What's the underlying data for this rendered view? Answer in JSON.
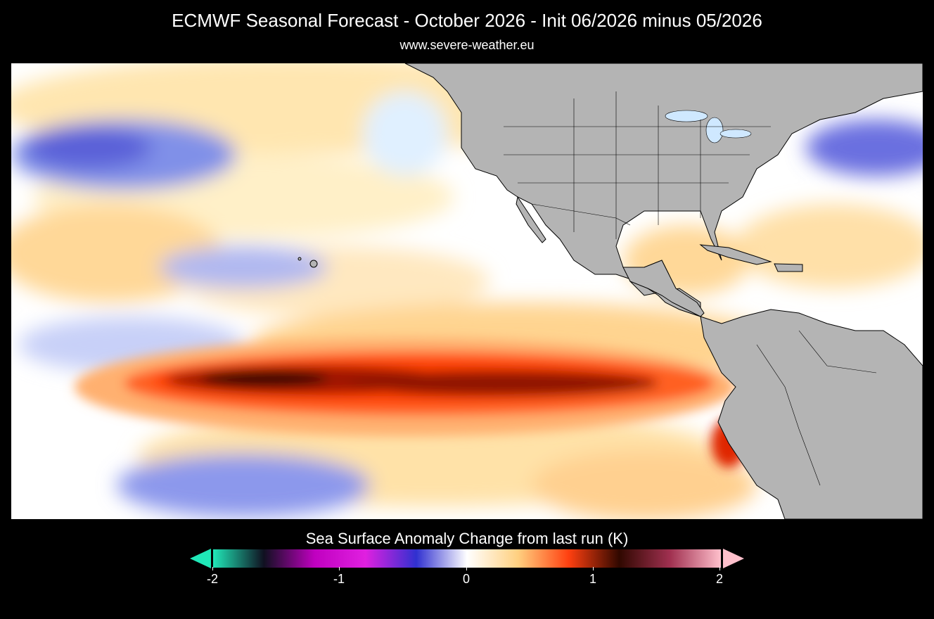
{
  "header": {
    "title": "ECMWF Seasonal Forecast - October 2026 - Init 06/2026 minus 05/2026",
    "subtitle": "www.severe-weather.eu"
  },
  "legend": {
    "title": "Sea Surface Anomaly Change from last run (K)",
    "tick_labels": [
      "-2",
      "-1",
      "0",
      "1",
      "2"
    ],
    "min": -2,
    "max": 2,
    "colors": {
      "cold_extreme": "#20e8b8",
      "minus_1_5": "#c000c0",
      "minus_1": "#e020e0",
      "minus_0_5": "#3030d0",
      "neutral": "#ffffff",
      "plus_0_25": "#ffd080",
      "plus_0_5": "#ff4010",
      "plus_1": "#300800",
      "plus_1_5": "#a03050",
      "warm_extreme": "#ffc0cc"
    }
  },
  "map": {
    "land_color": "#b4b4b4",
    "border_color": "#000000"
  }
}
